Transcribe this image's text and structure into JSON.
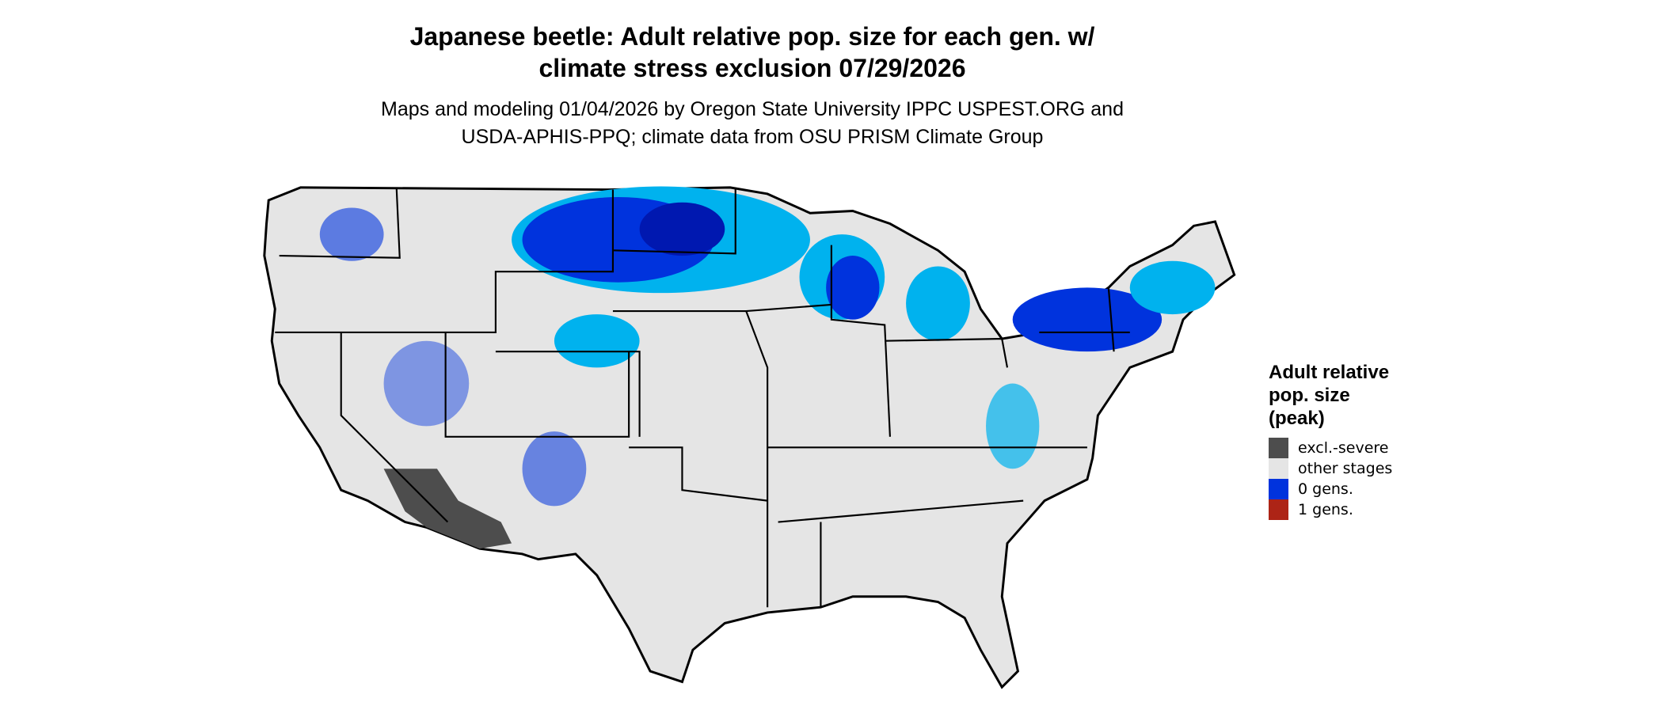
{
  "title": {
    "line1": "Japanese beetle: Adult relative pop. size for each gen. w/",
    "line2": "climate stress exclusion 07/29/2026"
  },
  "subtitle": {
    "line1": "Maps and modeling 01/04/2026 by Oregon State University IPPC USPEST.ORG and",
    "line2": "USDA-APHIS-PPQ; climate data from OSU PRISM Climate Group"
  },
  "map": {
    "region": "contiguous-us",
    "colors": {
      "background": "#e5e5e5",
      "border": "#000000",
      "light_blue": "#00b2ee",
      "blue": "#0033dd",
      "dark_blue": "#0018b0",
      "excluded": "#4d4d4d"
    }
  },
  "legend": {
    "title_lines": [
      "Adult relative",
      "pop. size",
      "(peak)"
    ],
    "items": [
      {
        "label": "excl.-severe",
        "color": "#4d4d4d"
      },
      {
        "label": "other stages",
        "color": "#e5e5e5"
      },
      {
        "label": "0 gens.",
        "color": "#0033dd"
      },
      {
        "label": "1 gens.",
        "color": "#ad2416"
      }
    ]
  }
}
